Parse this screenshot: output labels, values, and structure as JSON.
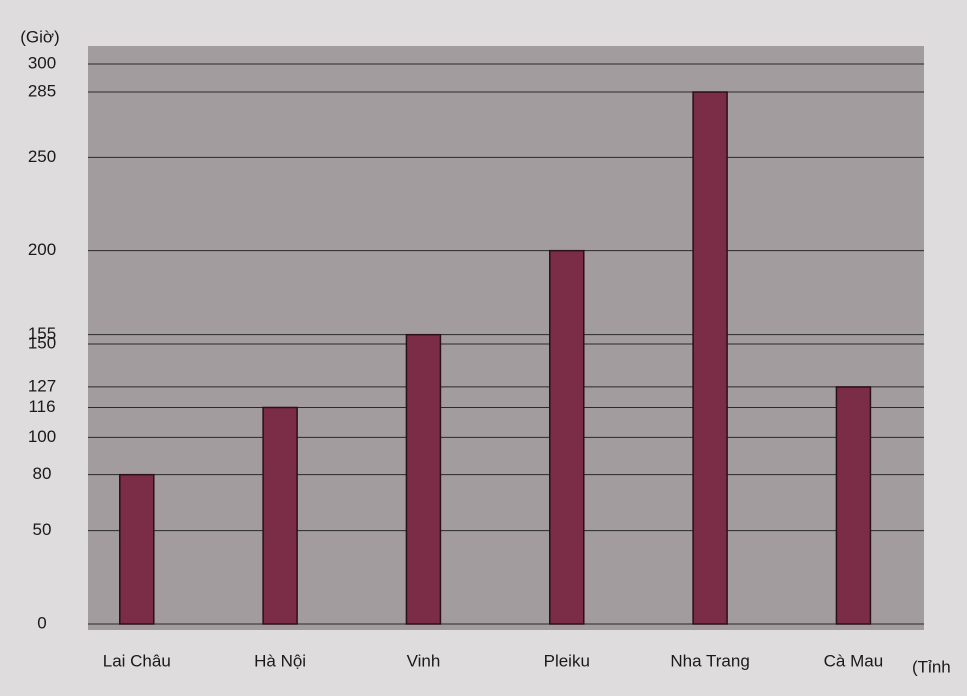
{
  "chart_data": {
    "type": "bar",
    "y_label": "(Giờ)",
    "x_label": "(Tỉnh",
    "categories": [
      "Lai Châu",
      "Hà Nội",
      "Vinh",
      "Pleiku",
      "Nha Trang",
      "Cà Mau"
    ],
    "values": [
      80,
      116,
      155,
      200,
      285,
      127
    ],
    "color": "#7b2c47",
    "ylim": [
      0,
      300
    ],
    "yticks": [
      0,
      50,
      80,
      100,
      116,
      127,
      150,
      155,
      200,
      250,
      285,
      300
    ],
    "grid": true
  }
}
